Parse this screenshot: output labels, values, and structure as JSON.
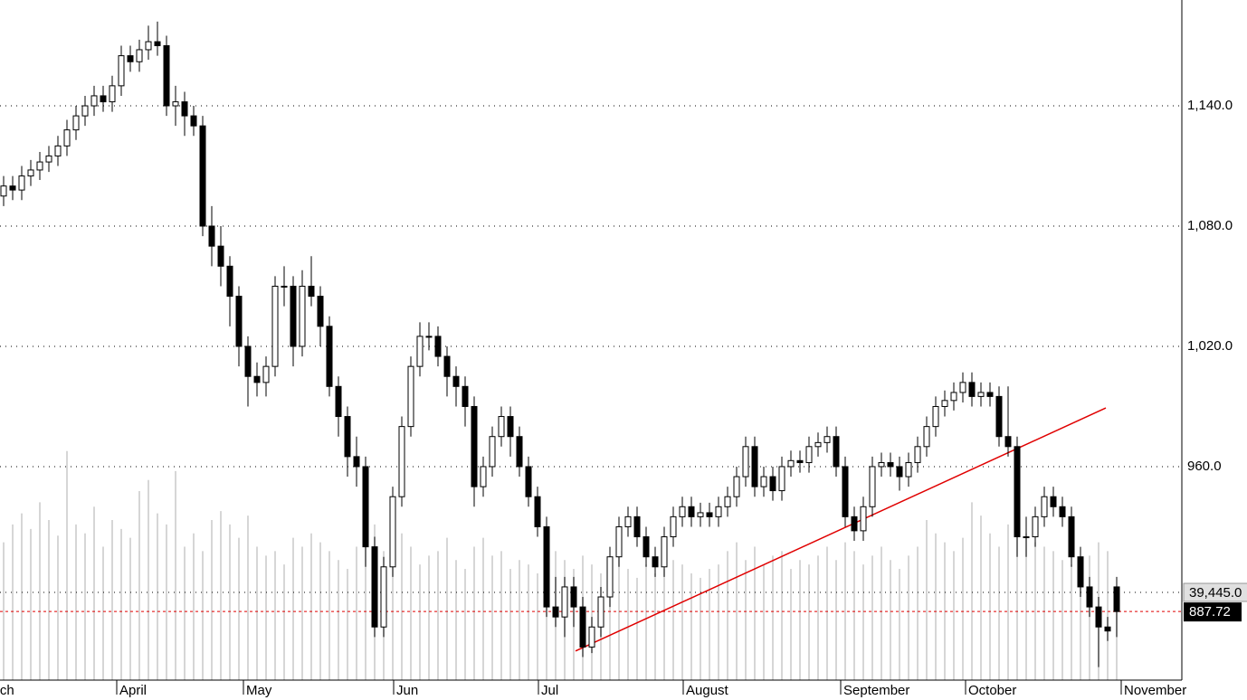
{
  "chart_data": {
    "type": "candlestick",
    "open": [
      1095,
      1100,
      1098,
      1105,
      1108,
      1112,
      1115,
      1120,
      1128,
      1135,
      1140,
      1145,
      1142,
      1150,
      1165,
      1162,
      1168,
      1172,
      1170,
      1140,
      1142,
      1135,
      1130,
      1080,
      1070,
      1060,
      1045,
      1020,
      1005,
      1002,
      1010,
      1050,
      1050,
      1020,
      1050,
      1045,
      1030,
      1000,
      985,
      965,
      960,
      920,
      880,
      910,
      945,
      980,
      1010,
      1025,
      1025,
      1015,
      1005,
      1000,
      990,
      950,
      960,
      975,
      985,
      975,
      960,
      945,
      930,
      890,
      885,
      900,
      890,
      870,
      880,
      895,
      915,
      930,
      935,
      925,
      915,
      910,
      925,
      935,
      940,
      935,
      937,
      935,
      940,
      945,
      955,
      970,
      950,
      955,
      948,
      960,
      963,
      962,
      970,
      972,
      975,
      960,
      935,
      928,
      940,
      960,
      962,
      960,
      955,
      962,
      970,
      980,
      990,
      993,
      997,
      1002,
      995,
      997,
      995,
      975,
      970,
      925,
      925,
      935,
      945,
      940,
      935,
      915,
      900,
      890,
      880,
      900
    ],
    "high": [
      1105,
      1105,
      1110,
      1113,
      1117,
      1120,
      1125,
      1133,
      1140,
      1145,
      1150,
      1150,
      1155,
      1170,
      1170,
      1173,
      1180,
      1182,
      1175,
      1150,
      1147,
      1140,
      1135,
      1090,
      1080,
      1065,
      1050,
      1025,
      1012,
      1015,
      1055,
      1060,
      1055,
      1058,
      1065,
      1050,
      1035,
      1005,
      990,
      975,
      965,
      925,
      915,
      950,
      985,
      1015,
      1032,
      1032,
      1030,
      1020,
      1010,
      1005,
      995,
      965,
      980,
      990,
      990,
      980,
      965,
      950,
      935,
      905,
      905,
      905,
      895,
      885,
      900,
      920,
      935,
      940,
      940,
      930,
      920,
      930,
      940,
      945,
      945,
      942,
      942,
      945,
      950,
      960,
      975,
      975,
      960,
      960,
      965,
      968,
      968,
      975,
      977,
      980,
      980,
      965,
      940,
      945,
      965,
      967,
      967,
      965,
      967,
      975,
      985,
      995,
      998,
      1002,
      1007,
      1007,
      1002,
      1002,
      1000,
      1000,
      975,
      935,
      940,
      950,
      950,
      945,
      940,
      920,
      905,
      895,
      885,
      905
    ],
    "low": [
      1090,
      1093,
      1093,
      1100,
      1103,
      1107,
      1110,
      1115,
      1123,
      1130,
      1135,
      1137,
      1137,
      1145,
      1157,
      1157,
      1163,
      1165,
      1135,
      1130,
      1125,
      1125,
      1075,
      1060,
      1050,
      1030,
      1010,
      990,
      995,
      995,
      1005,
      1040,
      1010,
      1015,
      1040,
      1020,
      995,
      975,
      955,
      950,
      910,
      875,
      875,
      905,
      940,
      975,
      1005,
      1018,
      1010,
      995,
      990,
      980,
      940,
      945,
      955,
      970,
      965,
      955,
      940,
      925,
      885,
      880,
      875,
      880,
      865,
      867,
      875,
      890,
      910,
      925,
      920,
      910,
      905,
      905,
      920,
      930,
      930,
      930,
      930,
      930,
      935,
      940,
      950,
      945,
      945,
      943,
      943,
      955,
      957,
      957,
      965,
      967,
      955,
      930,
      923,
      923,
      935,
      955,
      955,
      948,
      950,
      957,
      965,
      975,
      985,
      988,
      992,
      990,
      990,
      990,
      970,
      965,
      915,
      915,
      920,
      930,
      935,
      930,
      910,
      895,
      885,
      860,
      873,
      875
    ],
    "close": [
      1100,
      1098,
      1105,
      1108,
      1112,
      1115,
      1120,
      1128,
      1135,
      1140,
      1145,
      1142,
      1150,
      1165,
      1162,
      1168,
      1172,
      1170,
      1140,
      1142,
      1135,
      1130,
      1080,
      1070,
      1060,
      1045,
      1020,
      1005,
      1002,
      1010,
      1050,
      1050,
      1020,
      1050,
      1045,
      1030,
      1000,
      985,
      965,
      960,
      920,
      880,
      910,
      945,
      980,
      1010,
      1025,
      1025,
      1015,
      1005,
      1000,
      990,
      950,
      960,
      975,
      985,
      975,
      960,
      945,
      930,
      890,
      885,
      900,
      890,
      870,
      880,
      895,
      915,
      930,
      935,
      925,
      915,
      910,
      925,
      935,
      940,
      935,
      937,
      935,
      940,
      945,
      955,
      970,
      950,
      955,
      948,
      960,
      963,
      962,
      970,
      972,
      975,
      960,
      935,
      928,
      940,
      960,
      962,
      960,
      955,
      962,
      970,
      980,
      990,
      993,
      997,
      1002,
      995,
      997,
      995,
      975,
      970,
      925,
      925,
      935,
      945,
      940,
      935,
      915,
      900,
      890,
      880,
      878,
      887.72
    ],
    "volume": [
      62000,
      70000,
      75000,
      68000,
      80000,
      72000,
      65000,
      103000,
      70000,
      66000,
      78000,
      60000,
      72000,
      68000,
      64000,
      85000,
      90000,
      75000,
      70000,
      94000,
      60000,
      66000,
      58000,
      72000,
      76000,
      70000,
      64000,
      74000,
      60000,
      56000,
      58000,
      52000,
      64000,
      60000,
      66000,
      62000,
      58000,
      54000,
      50000,
      60000,
      64000,
      70000,
      58000,
      62000,
      66000,
      60000,
      52000,
      56000,
      58000,
      64000,
      54000,
      50000,
      60000,
      64000,
      56000,
      58000,
      50000,
      54000,
      52000,
      48000,
      60000,
      58000,
      54000,
      50000,
      56000,
      52000,
      48000,
      54000,
      56000,
      50000,
      46000,
      52000,
      48000,
      50000,
      54000,
      52000,
      48000,
      46000,
      50000,
      52000,
      58000,
      62000,
      54000,
      60000,
      52000,
      56000,
      58000,
      50000,
      54000,
      52000,
      56000,
      60000,
      54000,
      62000,
      58000,
      52000,
      56000,
      60000,
      54000,
      50000,
      56000,
      60000,
      72000,
      66000,
      62000,
      58000,
      64000,
      80000,
      74000,
      66000,
      60000,
      70000,
      72000,
      66000,
      62000,
      60000,
      58000,
      54000,
      52000,
      48000,
      56000,
      62000,
      58000,
      39445
    ],
    "ylim": [
      853.5,
      1192.8
    ],
    "yticks": [
      {
        "value": 960,
        "label": "960.0"
      },
      {
        "value": 1020,
        "label": "1,020.0"
      },
      {
        "value": 1080,
        "label": "1,080.0"
      },
      {
        "value": 1140,
        "label": "1,140.0"
      }
    ],
    "volume_lim": [
      0,
      120000
    ],
    "volume_label": {
      "value": 39445,
      "label": "39,445.0"
    },
    "last_price": 887.72,
    "x_labels": [
      {
        "label": "March",
        "index": -1.5
      },
      {
        "label": "April",
        "index": 13
      },
      {
        "label": "May",
        "index": 27
      },
      {
        "label": "Jun",
        "index": 43.6
      },
      {
        "label": "Jul",
        "index": 59.6
      },
      {
        "label": "August",
        "index": 75.6
      },
      {
        "label": "September",
        "index": 93
      },
      {
        "label": "October",
        "index": 106.8
      },
      {
        "label": "November",
        "index": 124
      }
    ],
    "trendline": {
      "x": [
        63.2,
        121.8
      ],
      "y": [
        868,
        989.3
      ],
      "color": "#e00000"
    },
    "grid": true
  }
}
